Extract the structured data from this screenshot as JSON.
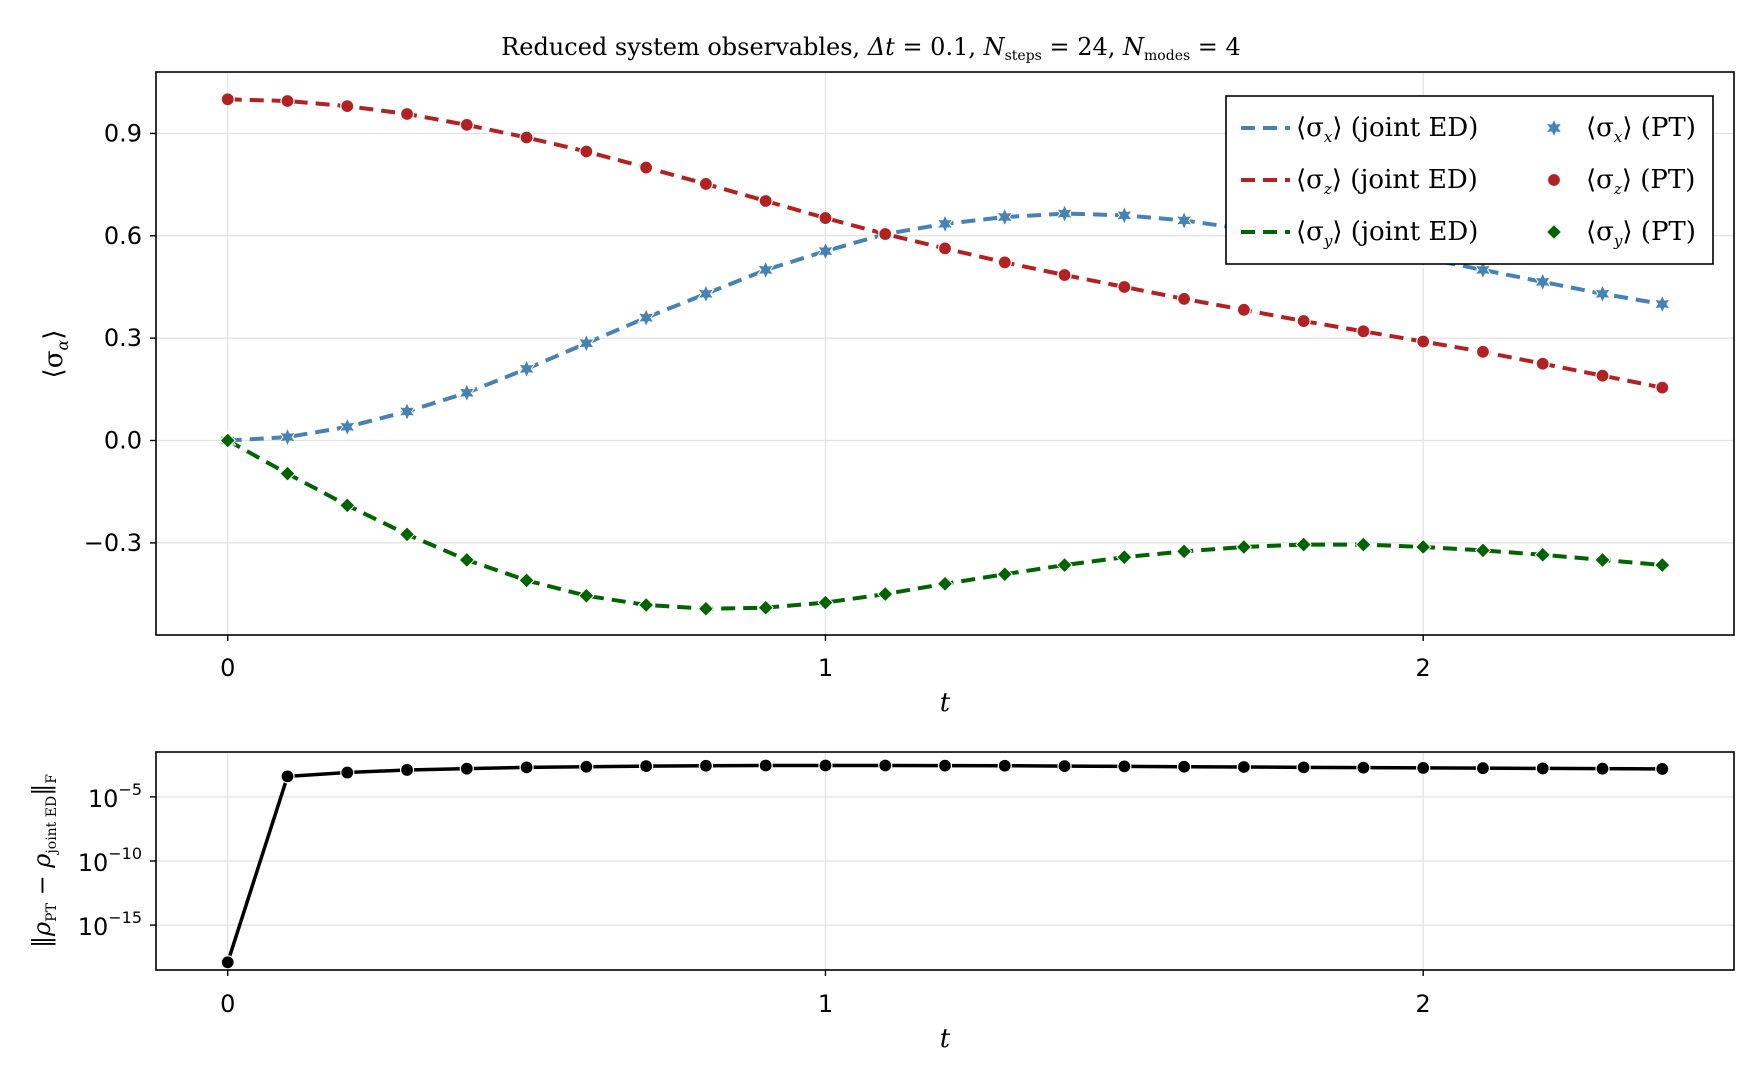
{
  "chart_data": [
    {
      "type": "line",
      "title": "Reduced system observables, Δt = 0.1, N_steps = 24, N_modes = 4",
      "title_parts": {
        "lead": "Reduced system observables, ",
        "dt_sym": "Δt",
        "dt_val": " = 0.1, ",
        "N1": "N",
        "N1_sub": "steps",
        "N1_val": " = 24, ",
        "N2": "N",
        "N2_sub": "modes",
        "N2_val": " = 4"
      },
      "xlabel": "t",
      "ylabel": "⟨σ",
      "ylabel_sub": "α",
      "ylabel_close": "⟩",
      "xlim": [
        -0.12,
        2.52
      ],
      "ylim": [
        -0.57,
        1.08
      ],
      "xticks": [
        0,
        1,
        2
      ],
      "xtick_labels": [
        "0",
        "1",
        "2"
      ],
      "yticks": [
        -0.3,
        0.0,
        0.3,
        0.6,
        0.9
      ],
      "ytick_labels": [
        "−0.3",
        "0.0",
        "0.3",
        "0.6",
        "0.9"
      ],
      "grid": true,
      "legend_placement": "top-right",
      "x": [
        0.0,
        0.1,
        0.2,
        0.3,
        0.4,
        0.5,
        0.6,
        0.7,
        0.8,
        0.9,
        1.0,
        1.1,
        1.2,
        1.3,
        1.4,
        1.5,
        1.6,
        1.7,
        1.8,
        1.9,
        2.0,
        2.1,
        2.2,
        2.3,
        2.4
      ],
      "series": [
        {
          "key": "x",
          "color": "#4682b4",
          "marker": "star",
          "line_label": {
            "open": "⟨σ",
            "sub": "x",
            "close": "⟩",
            "text": " (joint ED)"
          },
          "marker_label": {
            "open": "⟨σ",
            "sub": "x",
            "close": "⟩",
            "text": " (PT)"
          },
          "values": [
            0.0,
            0.01,
            0.04,
            0.085,
            0.14,
            0.21,
            0.285,
            0.36,
            0.43,
            0.5,
            0.555,
            0.605,
            0.635,
            0.655,
            0.665,
            0.66,
            0.645,
            0.62,
            0.595,
            0.565,
            0.535,
            0.5,
            0.465,
            0.43,
            0.4
          ]
        },
        {
          "key": "z",
          "color": "#b22222",
          "marker": "circle",
          "line_label": {
            "open": "⟨σ",
            "sub": "z",
            "close": "⟩",
            "text": " (joint ED)"
          },
          "marker_label": {
            "open": "⟨σ",
            "sub": "z",
            "close": "⟩",
            "text": " (PT)"
          },
          "values": [
            1.0,
            0.995,
            0.98,
            0.957,
            0.925,
            0.888,
            0.847,
            0.8,
            0.752,
            0.702,
            0.652,
            0.605,
            0.563,
            0.522,
            0.485,
            0.45,
            0.415,
            0.383,
            0.35,
            0.32,
            0.29,
            0.26,
            0.225,
            0.19,
            0.155
          ]
        },
        {
          "key": "y",
          "color": "#006400",
          "marker": "diamond",
          "line_label": {
            "open": "⟨σ",
            "sub": "y",
            "close": "⟩",
            "text": " (joint ED)"
          },
          "marker_label": {
            "open": "⟨σ",
            "sub": "y",
            "close": "⟩",
            "text": " (PT)"
          },
          "values": [
            0.0,
            -0.097,
            -0.19,
            -0.275,
            -0.35,
            -0.41,
            -0.455,
            -0.482,
            -0.493,
            -0.49,
            -0.475,
            -0.45,
            -0.42,
            -0.392,
            -0.365,
            -0.342,
            -0.325,
            -0.312,
            -0.305,
            -0.305,
            -0.312,
            -0.322,
            -0.335,
            -0.35,
            -0.365
          ]
        }
      ]
    },
    {
      "type": "line",
      "xlabel": "t",
      "ylabel": "‖ρ_PT − ρ_joint ED‖_F",
      "ylabel_parts": {
        "bar": "‖",
        "rho": "ρ",
        "sub1": "PT",
        "minus": " − ",
        "sub2": "joint ED",
        "subF": "F"
      },
      "yscale": "log",
      "xlim": [
        -0.12,
        2.52
      ],
      "ylim_log10": [
        -18.5,
        -1.5
      ],
      "xticks": [
        0,
        1,
        2
      ],
      "xtick_labels": [
        "0",
        "1",
        "2"
      ],
      "yticks_log10": [
        -5,
        -10,
        -15
      ],
      "ytick_labels": [
        {
          "base": "10",
          "exp": "−5"
        },
        {
          "base": "10",
          "exp": "−10"
        },
        {
          "base": "10",
          "exp": "−15"
        }
      ],
      "grid": true,
      "series": [
        {
          "color": "#000000",
          "marker": "circle",
          "x": [
            0.0,
            0.1,
            0.2,
            0.3,
            0.4,
            0.5,
            0.6,
            0.7,
            0.8,
            0.9,
            1.0,
            1.1,
            1.2,
            1.3,
            1.4,
            1.5,
            1.6,
            1.7,
            1.8,
            1.9,
            2.0,
            2.1,
            2.2,
            2.3,
            2.4
          ],
          "log10_values": [
            -17.9,
            -3.4,
            -3.1,
            -2.9,
            -2.8,
            -2.7,
            -2.65,
            -2.6,
            -2.57,
            -2.55,
            -2.55,
            -2.55,
            -2.56,
            -2.57,
            -2.6,
            -2.62,
            -2.65,
            -2.67,
            -2.7,
            -2.72,
            -2.74,
            -2.76,
            -2.78,
            -2.8,
            -2.82
          ]
        }
      ]
    }
  ]
}
